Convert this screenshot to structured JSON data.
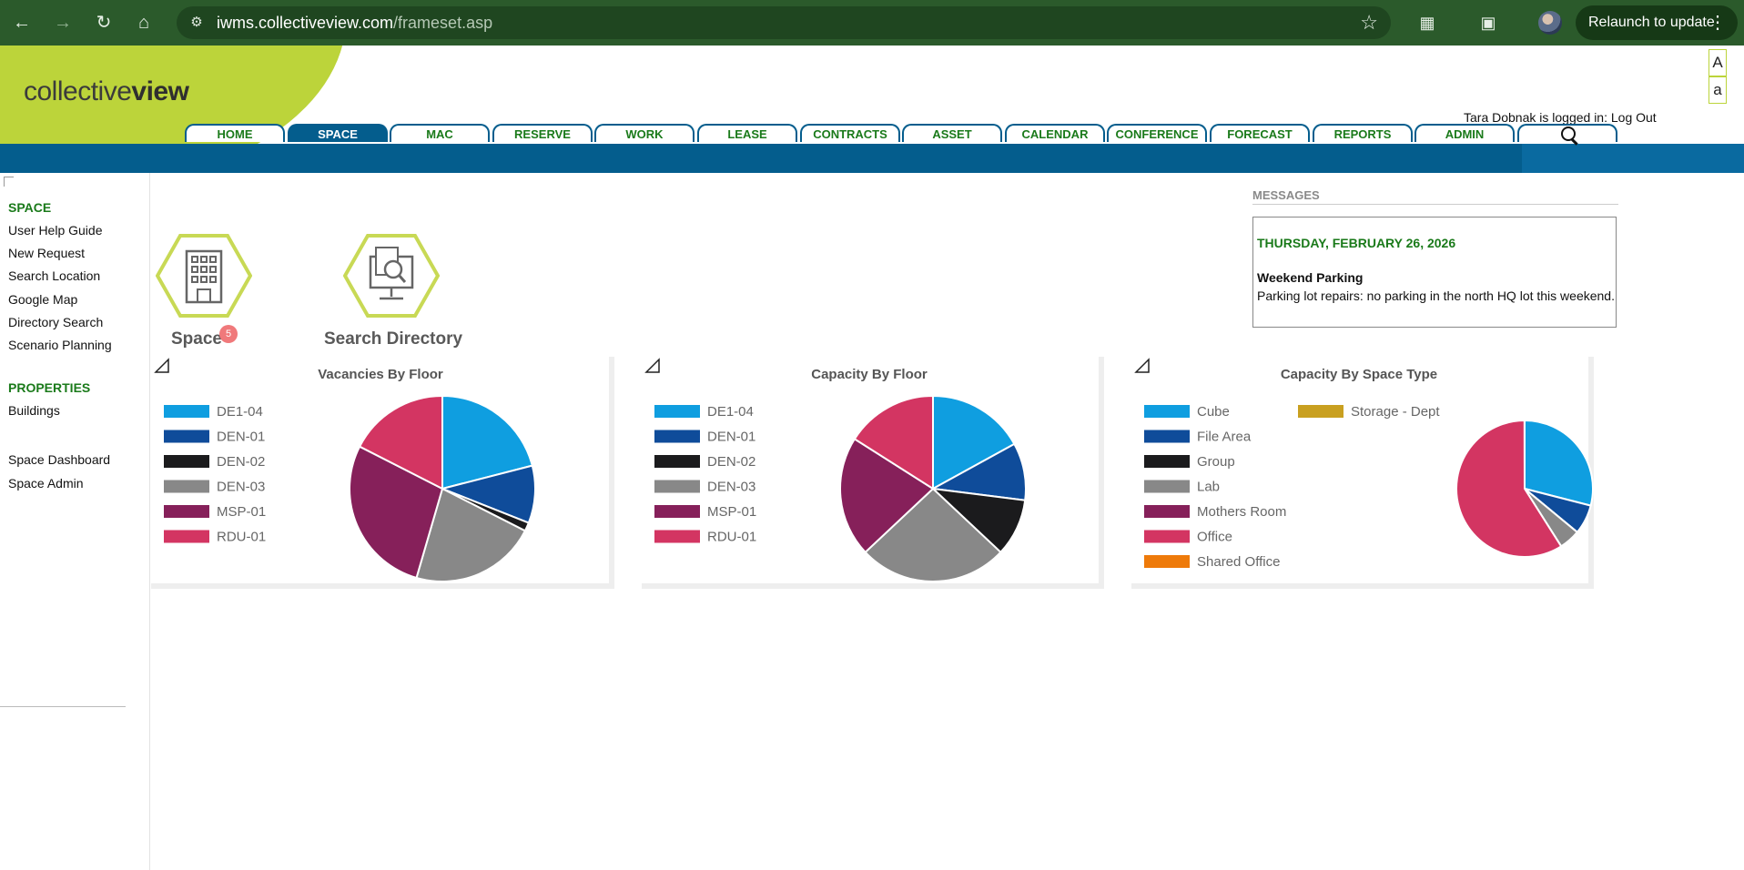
{
  "browser": {
    "url_host": "iwms.collectiveview.com",
    "url_path": "/frameset.asp",
    "relaunch_label": "Relaunch to update",
    "menu_glyph": "⋮"
  },
  "header": {
    "logo_light": "collective",
    "logo_bold": "view",
    "font_large": "A",
    "font_small": "a",
    "login_text": "Tara Dobnak is logged in: Log Out",
    "tabs": [
      "HOME",
      "SPACE",
      "MAC",
      "RESERVE",
      "WORK",
      "LEASE",
      "CONTRACTS",
      "ASSET",
      "CALENDAR",
      "CONFERENCE",
      "FORECAST",
      "REPORTS",
      "ADMIN"
    ],
    "active_tab": "SPACE"
  },
  "sidebar": {
    "space_title": "SPACE",
    "space_items": [
      "User Help Guide",
      "New Request",
      "Search Location",
      "Google Map",
      "Directory Search",
      "Scenario Planning"
    ],
    "properties_title": "PROPERTIES",
    "properties_items": [
      "Buildings"
    ],
    "extra_items": [
      "Space Dashboard",
      "Space Admin"
    ]
  },
  "quick": {
    "space_label": "Space",
    "space_badge": "5",
    "directory_label": "Search Directory"
  },
  "messages": {
    "heading": "MESSAGES",
    "date": "THURSDAY, FEBRUARY 26, 2026",
    "title": "Weekend Parking",
    "body": "Parking lot repairs: no parking in the north HQ lot this weekend."
  },
  "chart_data": [
    {
      "type": "pie",
      "title": "Vacancies By Floor",
      "categories": [
        "DE1-04",
        "DEN-01",
        "DEN-02",
        "DEN-03",
        "MSP-01",
        "RDU-01"
      ],
      "values": [
        21,
        10,
        1.5,
        22,
        28,
        17.5
      ],
      "colors": [
        "#0f9ee0",
        "#0f4c9a",
        "#1b1b1d",
        "#888888",
        "#86205a",
        "#d33562"
      ]
    },
    {
      "type": "pie",
      "title": "Capacity By Floor",
      "categories": [
        "DE1-04",
        "DEN-01",
        "DEN-02",
        "DEN-03",
        "MSP-01",
        "RDU-01"
      ],
      "values": [
        17,
        10,
        10,
        26,
        21,
        16
      ],
      "colors": [
        "#0f9ee0",
        "#0f4c9a",
        "#1b1b1d",
        "#888888",
        "#86205a",
        "#d33562"
      ]
    },
    {
      "type": "pie",
      "title": "Capacity By Space Type",
      "categories": [
        "Cube",
        "File Area",
        "Group",
        "Lab",
        "Mothers Room",
        "Office",
        "Shared Office",
        "Storage - Dept"
      ],
      "values": [
        29,
        7,
        0.01,
        5,
        0.01,
        58.98,
        0.01,
        0.01
      ],
      "colors": [
        "#0f9ee0",
        "#0f4c9a",
        "#1b1b1d",
        "#888888",
        "#86205a",
        "#d33562",
        "#ee7a0a",
        "#c9a020"
      ]
    }
  ]
}
